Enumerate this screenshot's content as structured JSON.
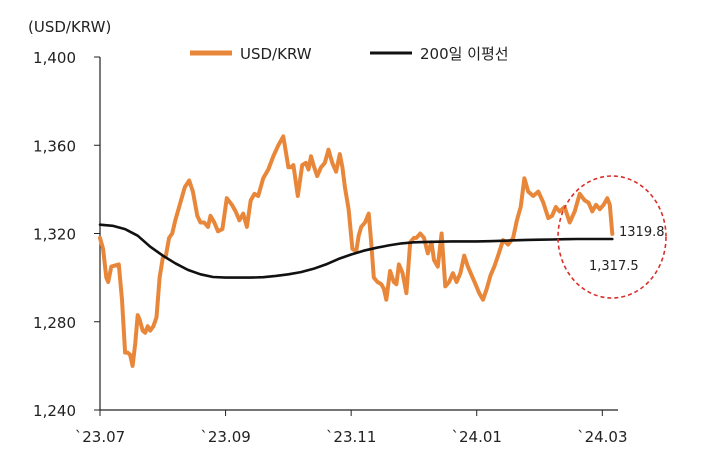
{
  "chart_data": {
    "type": "line",
    "unit_label": "(USD/KRW)",
    "ylim": [
      1240,
      1400
    ],
    "y_ticks": [
      "1,400",
      "1,360",
      "1,320",
      "1,280",
      "1,240"
    ],
    "y_tick_values": [
      1400,
      1360,
      1320,
      1280,
      1240
    ],
    "x_ticks": [
      "`23.07",
      "`23.09",
      "`23.11",
      "`24.01",
      "`24.03"
    ],
    "x_tick_values": [
      0,
      2,
      4,
      6,
      8
    ],
    "xlim": [
      0,
      8.25
    ],
    "legend_position": "top",
    "series": [
      {
        "name": "USD/KRW",
        "color": "#E8873A",
        "x": [
          0.0,
          0.05,
          0.1,
          0.13,
          0.18,
          0.3,
          0.35,
          0.4,
          0.44,
          0.48,
          0.52,
          0.56,
          0.6,
          0.63,
          0.68,
          0.72,
          0.76,
          0.8,
          0.85,
          0.9,
          0.95,
          1.0,
          1.05,
          1.1,
          1.15,
          1.2,
          1.28,
          1.35,
          1.42,
          1.48,
          1.55,
          1.6,
          1.66,
          1.72,
          1.76,
          1.82,
          1.88,
          1.95,
          2.02,
          2.1,
          2.16,
          2.22,
          2.28,
          2.34,
          2.4,
          2.46,
          2.52,
          2.6,
          2.68,
          2.76,
          2.84,
          2.92,
          3.0,
          3.04,
          3.08,
          3.15,
          3.22,
          3.28,
          3.32,
          3.36,
          3.4,
          3.46,
          3.52,
          3.58,
          3.64,
          3.7,
          3.76,
          3.82,
          3.86,
          3.9,
          3.96,
          4.02,
          4.08,
          4.12,
          4.16,
          4.22,
          4.28,
          4.32,
          4.36,
          4.42,
          4.48,
          4.52,
          4.56,
          4.62,
          4.68,
          4.72,
          4.76,
          4.82,
          4.88,
          4.94,
          5.0,
          5.04,
          5.1,
          5.16,
          5.22,
          5.28,
          5.32,
          5.38,
          5.44,
          5.5,
          5.56,
          5.62,
          5.68,
          5.74,
          5.8,
          5.86,
          5.92,
          5.98,
          6.04,
          6.1,
          6.16,
          6.22,
          6.28,
          6.34,
          6.42,
          6.5,
          6.58,
          6.64,
          6.7,
          6.76,
          6.82,
          6.9,
          6.98,
          7.06,
          7.14,
          7.2,
          7.26,
          7.32,
          7.4,
          7.48,
          7.56,
          7.64,
          7.72,
          7.78,
          7.84,
          7.9,
          7.96,
          8.02,
          8.08,
          8.12,
          8.16
        ],
        "values": [
          1318,
          1313,
          1300,
          1298,
          1305,
          1306,
          1290,
          1266,
          1266,
          1265,
          1260,
          1270,
          1283,
          1281,
          1276,
          1275,
          1278,
          1276,
          1278,
          1282,
          1300,
          1309,
          1310,
          1318,
          1320,
          1326,
          1334,
          1341,
          1344,
          1339,
          1328,
          1325,
          1325,
          1323,
          1328,
          1325,
          1321,
          1322,
          1336,
          1333,
          1330,
          1326,
          1329,
          1323,
          1335,
          1338,
          1337,
          1345,
          1349,
          1355,
          1360,
          1364,
          1350,
          1350,
          1351,
          1337,
          1351,
          1352,
          1349,
          1355,
          1351,
          1346,
          1350,
          1352,
          1358,
          1352,
          1348,
          1356,
          1350,
          1341,
          1331,
          1313,
          1312,
          1319,
          1323,
          1325,
          1329,
          1316,
          1300,
          1298,
          1297,
          1295,
          1290,
          1303,
          1298,
          1297,
          1306,
          1302,
          1293,
          1316,
          1318,
          1318,
          1320,
          1318,
          1311,
          1316,
          1308,
          1305,
          1320,
          1296,
          1298,
          1302,
          1298,
          1302,
          1310,
          1305,
          1301,
          1297,
          1293,
          1290,
          1295,
          1301,
          1305,
          1310,
          1317,
          1315,
          1318,
          1326,
          1332,
          1345,
          1339,
          1337,
          1339,
          1334,
          1327,
          1328,
          1332,
          1330,
          1332,
          1325,
          1330,
          1338,
          1335,
          1334,
          1330,
          1333,
          1331,
          1333,
          1336,
          1333,
          1319.8
        ]
      },
      {
        "name": "200일 이평선",
        "color": "#111111",
        "x": [
          0.0,
          0.2,
          0.4,
          0.6,
          0.8,
          1.0,
          1.2,
          1.4,
          1.6,
          1.8,
          2.0,
          2.2,
          2.4,
          2.6,
          2.8,
          3.0,
          3.2,
          3.4,
          3.6,
          3.8,
          4.0,
          4.2,
          4.4,
          4.6,
          4.8,
          5.0,
          5.2,
          5.4,
          5.6,
          5.8,
          6.0,
          6.2,
          6.4,
          6.6,
          6.8,
          7.0,
          7.2,
          7.4,
          7.6,
          7.8,
          8.0,
          8.16
        ],
        "values": [
          1324,
          1323.5,
          1322,
          1319,
          1314,
          1310,
          1306.5,
          1303.5,
          1301.5,
          1300.3,
          1300,
          1300,
          1300,
          1300.2,
          1300.8,
          1301.5,
          1302.5,
          1304,
          1306,
          1308.5,
          1310.5,
          1312.2,
          1313.5,
          1314.6,
          1315.5,
          1316,
          1316.2,
          1316.3,
          1316.4,
          1316.4,
          1316.4,
          1316.5,
          1316.7,
          1316.9,
          1317.1,
          1317.2,
          1317.3,
          1317.4,
          1317.5,
          1317.5,
          1317.5,
          1317.5
        ]
      }
    ],
    "annotations": [
      {
        "text": "1319.8",
        "series": 0
      },
      {
        "text": "1,317.5",
        "series": 1
      }
    ]
  }
}
